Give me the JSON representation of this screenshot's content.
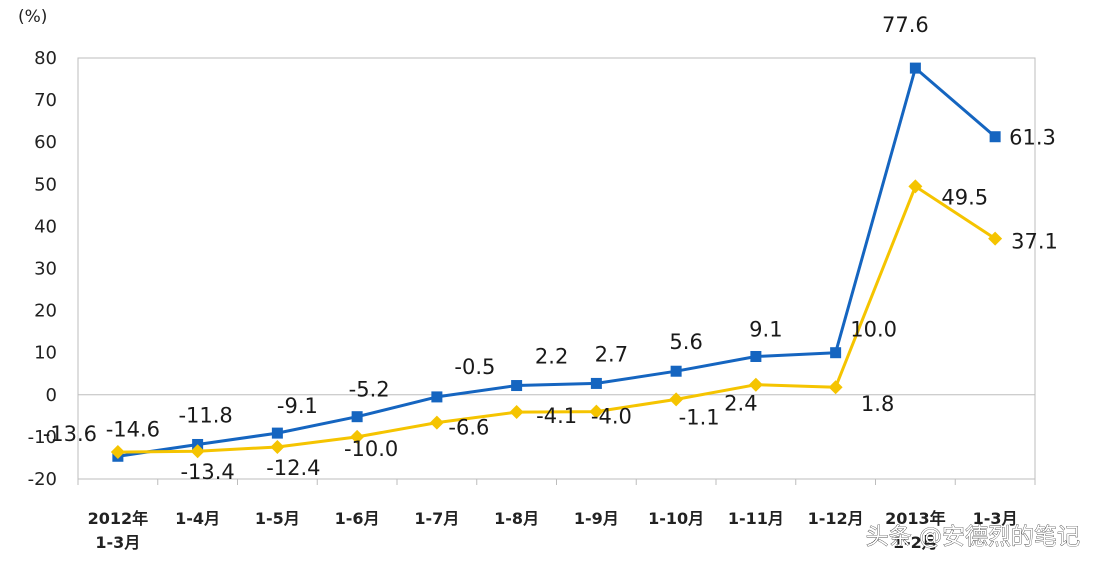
{
  "chart_data": {
    "type": "line",
    "unit_label": "(%)",
    "categories": [
      "2012年\n1-3月",
      "1-4月",
      "1-5月",
      "1-6月",
      "1-7月",
      "1-8月",
      "1-9月",
      "1-10月",
      "1-11月",
      "1-12月",
      "2013年\n1-2月",
      "1-3月"
    ],
    "ylim": [
      -20,
      80
    ],
    "yticks": [
      -20,
      -10,
      0,
      10,
      20,
      30,
      40,
      50,
      60,
      70,
      80
    ],
    "grid": false,
    "series": [
      {
        "color": "#1565c0",
        "marker": "square",
        "values": [
          -14.6,
          -11.8,
          -9.1,
          -5.2,
          -0.5,
          2.2,
          2.7,
          5.6,
          9.1,
          10.0,
          77.6,
          61.3
        ],
        "labels": [
          "-14.6",
          "-11.8",
          "-9.1",
          "-5.2",
          "-0.5",
          "2.2",
          "2.7",
          "5.6",
          "9.1",
          "10.0",
          "77.6",
          "61.3"
        ]
      },
      {
        "color": "#f5c400",
        "marker": "diamond",
        "values": [
          -13.6,
          -13.4,
          -12.4,
          -10.0,
          -6.6,
          -4.1,
          -4.0,
          -1.1,
          2.4,
          1.8,
          49.5,
          37.1
        ],
        "labels": [
          "-13.6",
          "-13.4",
          "-12.4",
          "-10.0",
          "-6.6",
          "-4.1",
          "-4.0",
          "-1.1",
          "2.4",
          "1.8",
          "49.5",
          "37.1"
        ]
      }
    ]
  },
  "watermark": "头条 @安德烈的笔记"
}
